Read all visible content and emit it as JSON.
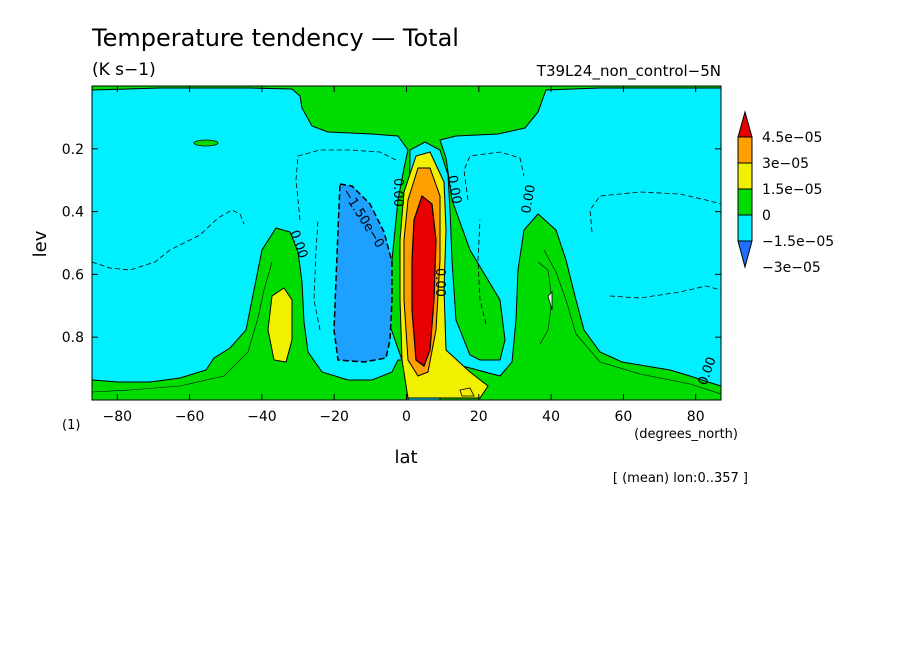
{
  "chart_data": {
    "type": "heatmap",
    "title": "Temperature tendency — Total",
    "units": "(K s−1)",
    "run_name": "T39L24_non_control−5N",
    "xlabel": "lat",
    "xunits": "(degrees_north)",
    "ylabel": "lev",
    "yunits": "(1)",
    "footnote": "[ (mean) lon:0..357 ]",
    "xlim": [
      -87,
      87
    ],
    "ylim": [
      0.0,
      1.0
    ],
    "y_inverted": true,
    "x_ticks": [
      -80,
      -60,
      -40,
      -20,
      0,
      20,
      40,
      60,
      80
    ],
    "x_tick_labels": [
      "−80",
      "−60",
      "−40",
      "−20",
      "0",
      "20",
      "40",
      "60",
      "80"
    ],
    "y_ticks": [
      0.2,
      0.4,
      0.6,
      0.8
    ],
    "y_tick_labels": [
      "0.2",
      "0.4",
      "0.6",
      "0.8"
    ],
    "colorbar": {
      "levels": [
        -3e-05,
        -1.5e-05,
        0,
        1.5e-05,
        3e-05,
        4.5e-05
      ],
      "labels": [
        "−3e−05",
        "−1.5e−05",
        "0",
        "1.5e−05",
        "3e−05",
        "4.5e−05"
      ],
      "colors": [
        "#1e82ff",
        "#00f0ff",
        "#00dc00",
        "#f0f000",
        "#ffa000",
        "#e60000",
        "#1e6eff"
      ],
      "extend": "both"
    },
    "contour_labels": [
      "−1.50e−0",
      "0.00",
      "0.00",
      "0.00",
      "0.00",
      "0.00",
      "0.00"
    ],
    "regions": [
      {
        "fill": "cyan",
        "range": "-1.5e-05..0",
        "desc": "background"
      },
      {
        "fill": "green",
        "range": "0..1.5e-05"
      },
      {
        "fill": "blue",
        "range": "< -1.5e-05"
      },
      {
        "fill": "yellow",
        "range": "1.5e-05..3e-05"
      },
      {
        "fill": "orange",
        "range": "3e-05..4.5e-05"
      },
      {
        "fill": "red",
        "range": "> 4.5e-05"
      }
    ],
    "colors": {
      "cyan": "#00f0ff",
      "green": "#00dc00",
      "blue": "#1ea0ff",
      "yellow": "#f0f000",
      "orange": "#ffa000",
      "red": "#e60000"
    }
  }
}
